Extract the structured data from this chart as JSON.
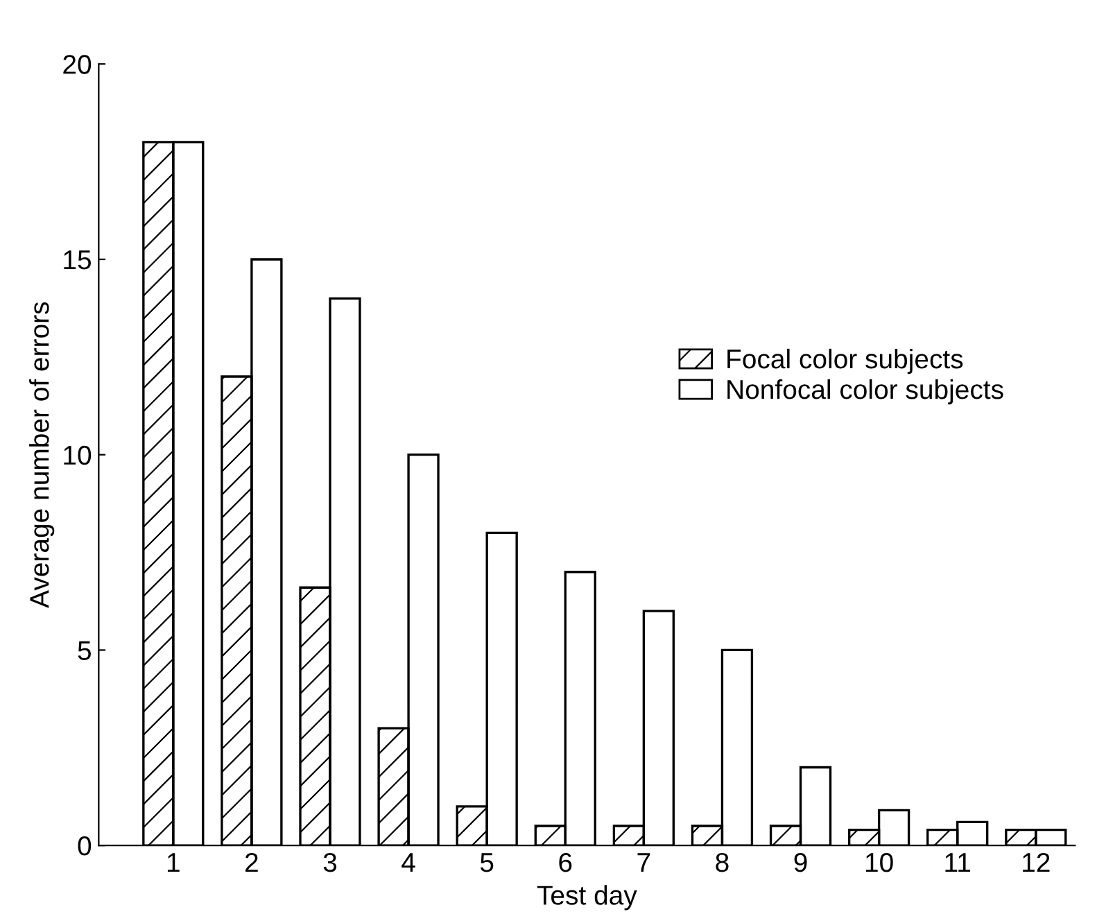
{
  "chart_data": {
    "type": "bar",
    "xlabel": "Test day",
    "ylabel": "Average number of errors",
    "categories": [
      "1",
      "2",
      "3",
      "4",
      "5",
      "6",
      "7",
      "8",
      "9",
      "10",
      "11",
      "12"
    ],
    "series": [
      {
        "name": "Focal color subjects",
        "color": "#000000",
        "values": [
          18,
          12,
          6.6,
          3,
          1,
          0.5,
          0.5,
          0.5,
          0.5,
          0.4,
          0.4,
          0.4
        ]
      },
      {
        "name": "Nonfocal color subjects",
        "color": "#000000",
        "values": [
          18,
          15,
          14,
          10,
          8,
          7,
          6,
          5,
          2,
          0.9,
          0.6,
          0.4
        ]
      }
    ],
    "ylim": [
      0,
      20
    ],
    "yticks": [
      0,
      5,
      10,
      15,
      20
    ],
    "grid": false,
    "legend": "right"
  }
}
